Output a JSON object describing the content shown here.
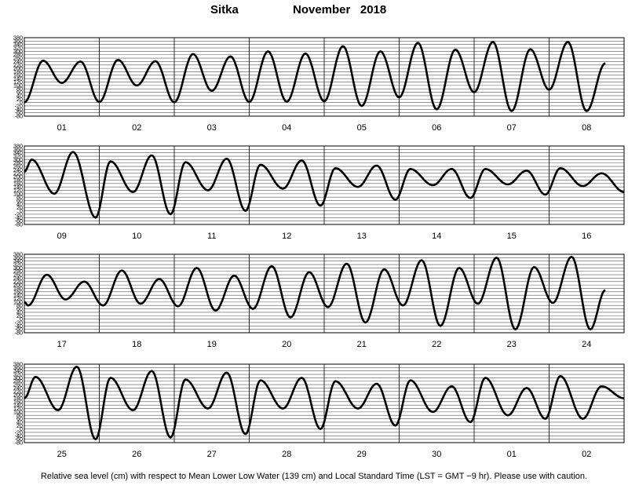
{
  "title": {
    "station": "Sitka",
    "month": "November   2018"
  },
  "footer": "Relative sea level (cm) with respect to Mean Lower Low Water (139 cm) and Local Standard Time (LST = GMT −9 hr). Please use with caution.",
  "chart_data": {
    "type": "line",
    "title": "Sitka     November   2018",
    "xlabel": "",
    "ylabel": "",
    "ylim": [
      -80,
      380
    ],
    "yticks": [
      -80,
      -60,
      -40,
      -20,
      0,
      20,
      40,
      60,
      80,
      100,
      120,
      140,
      160,
      180,
      200,
      220,
      240,
      260,
      280,
      300,
      320,
      340,
      360,
      380
    ],
    "ytick_labels": [
      "-80",
      "-60",
      "-40",
      "-20",
      "0",
      "20",
      "40",
      "60",
      "80",
      "100",
      "120",
      "140",
      "160",
      "180",
      "200",
      "220",
      "240",
      "260",
      "280",
      "300",
      "320",
      "340",
      "360",
      "380"
    ],
    "grid": true,
    "panels": [
      {
        "days": [
          "01",
          "02",
          "03",
          "04",
          "05",
          "06",
          "07",
          "08"
        ],
        "extrema": [
          [
            0,
            1
          ],
          [
            0.25,
            245
          ],
          [
            0.5,
            115
          ],
          [
            0.75,
            240
          ],
          [
            1.0,
            3
          ],
          [
            1.25,
            250
          ],
          [
            1.5,
            100
          ],
          [
            1.75,
            242
          ],
          [
            2.0,
            1
          ],
          [
            2.25,
            284
          ],
          [
            2.5,
            68
          ],
          [
            2.75,
            270
          ],
          [
            3.0,
            3
          ],
          [
            3.25,
            300
          ],
          [
            3.5,
            5
          ],
          [
            3.75,
            287
          ],
          [
            4.0,
            7
          ],
          [
            4.25,
            330
          ],
          [
            4.5,
            -20
          ],
          [
            4.75,
            300
          ],
          [
            5.0,
            30
          ],
          [
            5.25,
            350
          ],
          [
            5.5,
            -40
          ],
          [
            5.75,
            310
          ],
          [
            6.0,
            60
          ],
          [
            6.25,
            355
          ],
          [
            6.5,
            -50
          ],
          [
            6.75,
            312
          ],
          [
            7.0,
            75
          ],
          [
            7.25,
            355
          ],
          [
            7.5,
            -50
          ],
          [
            7.75,
            230
          ]
        ]
      },
      {
        "days": [
          "09",
          "10",
          "11",
          "12",
          "13",
          "14",
          "15",
          "16"
        ],
        "extrema": [
          [
            0,
            230
          ],
          [
            0.1,
            300
          ],
          [
            0.4,
            100
          ],
          [
            0.65,
            345
          ],
          [
            0.95,
            -40
          ],
          [
            1.15,
            290
          ],
          [
            1.45,
            110
          ],
          [
            1.7,
            325
          ],
          [
            1.95,
            -20
          ],
          [
            2.15,
            285
          ],
          [
            2.45,
            120
          ],
          [
            2.7,
            305
          ],
          [
            2.95,
            0
          ],
          [
            3.15,
            270
          ],
          [
            3.45,
            130
          ],
          [
            3.7,
            295
          ],
          [
            3.95,
            30
          ],
          [
            4.15,
            250
          ],
          [
            4.45,
            140
          ],
          [
            4.7,
            265
          ],
          [
            4.95,
            65
          ],
          [
            5.15,
            245
          ],
          [
            5.45,
            150
          ],
          [
            5.7,
            245
          ],
          [
            5.95,
            75
          ],
          [
            6.15,
            245
          ],
          [
            6.45,
            155
          ],
          [
            6.7,
            235
          ],
          [
            6.95,
            95
          ],
          [
            7.15,
            250
          ],
          [
            7.45,
            145
          ],
          [
            7.7,
            220
          ],
          [
            8.0,
            110
          ]
        ]
      },
      {
        "days": [
          "17",
          "18",
          "19",
          "20",
          "21",
          "22",
          "23",
          "24"
        ],
        "extrema": [
          [
            0,
            100
          ],
          [
            0.05,
            80
          ],
          [
            0.3,
            260
          ],
          [
            0.55,
            115
          ],
          [
            0.8,
            220
          ],
          [
            1.05,
            80
          ],
          [
            1.3,
            285
          ],
          [
            1.55,
            90
          ],
          [
            1.8,
            235
          ],
          [
            2.05,
            75
          ],
          [
            2.3,
            300
          ],
          [
            2.55,
            50
          ],
          [
            2.8,
            255
          ],
          [
            3.05,
            60
          ],
          [
            3.3,
            310
          ],
          [
            3.55,
            10
          ],
          [
            3.8,
            275
          ],
          [
            4.05,
            70
          ],
          [
            4.3,
            325
          ],
          [
            4.55,
            -20
          ],
          [
            4.8,
            292
          ],
          [
            5.05,
            80
          ],
          [
            5.3,
            345
          ],
          [
            5.55,
            -40
          ],
          [
            5.8,
            300
          ],
          [
            6.05,
            90
          ],
          [
            6.3,
            360
          ],
          [
            6.55,
            -60
          ],
          [
            6.8,
            305
          ],
          [
            7.05,
            95
          ],
          [
            7.3,
            365
          ],
          [
            7.55,
            -60
          ],
          [
            7.75,
            170
          ]
        ]
      },
      {
        "days": [
          "25",
          "26",
          "27",
          "28",
          "29",
          "30",
          "01",
          "02"
        ],
        "extrema": [
          [
            0,
            180
          ],
          [
            0.15,
            305
          ],
          [
            0.45,
            110
          ],
          [
            0.7,
            365
          ],
          [
            0.95,
            -60
          ],
          [
            1.15,
            300
          ],
          [
            1.45,
            110
          ],
          [
            1.7,
            340
          ],
          [
            1.95,
            -50
          ],
          [
            2.15,
            290
          ],
          [
            2.45,
            120
          ],
          [
            2.7,
            330
          ],
          [
            2.95,
            -30
          ],
          [
            3.15,
            285
          ],
          [
            3.45,
            120
          ],
          [
            3.7,
            300
          ],
          [
            3.95,
            0
          ],
          [
            4.15,
            280
          ],
          [
            4.45,
            120
          ],
          [
            4.7,
            265
          ],
          [
            4.95,
            20
          ],
          [
            5.15,
            285
          ],
          [
            5.45,
            100
          ],
          [
            5.7,
            250
          ],
          [
            5.95,
            40
          ],
          [
            6.15,
            300
          ],
          [
            6.45,
            80
          ],
          [
            6.7,
            240
          ],
          [
            6.95,
            60
          ],
          [
            7.15,
            310
          ],
          [
            7.45,
            60
          ],
          [
            7.7,
            250
          ],
          [
            8.0,
            180
          ]
        ]
      }
    ]
  }
}
